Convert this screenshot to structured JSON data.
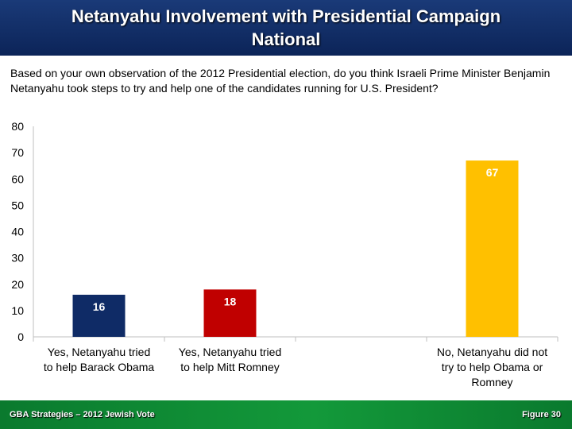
{
  "header": {
    "title_line1": "Netanyahu Involvement with Presidential Campaign",
    "title_line2": "National"
  },
  "question": "Based on your own observation of the 2012 Presidential election, do you think Israeli Prime Minister Benjamin Netanyahu took steps to try and help one of the candidates running for U.S. President?",
  "chart_data": {
    "type": "bar",
    "categories": [
      [
        "Yes, Netanyahu tried",
        "to help Barack Obama"
      ],
      [
        "Yes, Netanyahu tried",
        "to help Mitt Romney"
      ],
      [],
      [
        "No, Netanyahu did not",
        "try to help Obama or",
        "Romney"
      ]
    ],
    "values": [
      16,
      18,
      null,
      67
    ],
    "data_labels": [
      "16",
      "18",
      "",
      "67"
    ],
    "colors": [
      "#0f2b66",
      "#c00000",
      null,
      "#ffc000"
    ],
    "ylim": [
      0,
      80
    ],
    "yticks": [
      "0",
      "10",
      "20",
      "30",
      "40",
      "50",
      "60",
      "70",
      "80"
    ],
    "grid": false
  },
  "footer": {
    "source": "GBA Strategies – 2012 Jewish Vote",
    "figure": "Figure  30"
  }
}
